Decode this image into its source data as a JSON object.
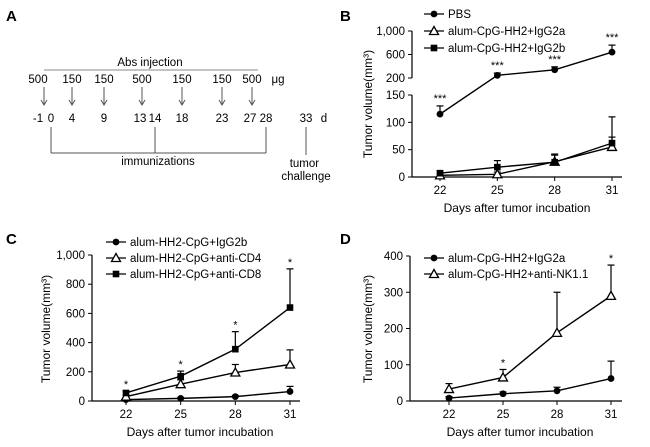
{
  "panel_labels": {
    "A": "A",
    "B": "B",
    "C": "C",
    "D": "D"
  },
  "timeline": {
    "title": "Abs injection",
    "unit": "μg",
    "doses": [
      "500",
      "150",
      "150",
      "500",
      "150",
      "150",
      "500"
    ],
    "days": [
      "-1",
      "0",
      "4",
      "9",
      "13",
      "14",
      "18",
      "23",
      "27",
      "28",
      "33"
    ],
    "day_unit": "d",
    "immunizations_label": "immunizations",
    "tumor_challenge_label": "tumor\nchallenge"
  },
  "chart_data": [
    {
      "panel": "B",
      "type": "line",
      "broken_axis": true,
      "x": [
        22,
        25,
        28,
        31
      ],
      "xlabel": "Days after tumor incubation",
      "ylabel": "Tumor volume(mm³)",
      "ylim_lower": [
        0,
        150
      ],
      "ylim_upper": [
        200,
        1000
      ],
      "yticks": [
        "0",
        "50",
        "100",
        "150",
        "200",
        "600",
        "1,000"
      ],
      "series": [
        {
          "name": "PBS",
          "marker": "circle",
          "values": [
            115,
            245,
            340,
            640
          ],
          "errors": [
            15,
            40,
            50,
            120
          ]
        },
        {
          "name": "alum-CpG-HH2+IgG2a",
          "marker": "triangle",
          "values": [
            3,
            5,
            28,
            55
          ],
          "errors": [
            3,
            4,
            12,
            18
          ]
        },
        {
          "name": "alum-CpG-HH2+IgG2b",
          "marker": "square",
          "values": [
            7,
            18,
            27,
            62
          ],
          "errors": [
            4,
            12,
            15,
            48
          ]
        }
      ],
      "annotations": [
        {
          "x": 22,
          "text": "***"
        },
        {
          "x": 25,
          "text": "***"
        },
        {
          "x": 28,
          "text": "***"
        },
        {
          "x": 31,
          "text": "***"
        }
      ]
    },
    {
      "panel": "C",
      "type": "line",
      "x": [
        22,
        25,
        28,
        31
      ],
      "xlabel": "Days after tumor incubation",
      "ylabel": "Tumor volume(mm³)",
      "ylim": [
        0,
        1000
      ],
      "yticks": [
        "0",
        "200",
        "400",
        "600",
        "800",
        "1,000"
      ],
      "series": [
        {
          "name": "alum-HH2-CpG+IgG2b",
          "marker": "circle",
          "values": [
            10,
            18,
            30,
            65
          ],
          "errors": [
            5,
            6,
            8,
            35
          ]
        },
        {
          "name": "alum-HH2-CpG+anti-CD4",
          "marker": "triangle",
          "values": [
            30,
            115,
            195,
            250
          ],
          "errors": [
            10,
            30,
            55,
            100
          ]
        },
        {
          "name": "alum-HH2-CpG+anti-CD8",
          "marker": "square",
          "values": [
            55,
            170,
            355,
            640
          ],
          "errors": [
            15,
            35,
            120,
            265
          ]
        }
      ],
      "annotations": [
        {
          "x": 22,
          "text": "*"
        },
        {
          "x": 25,
          "text": "*"
        },
        {
          "x": 28,
          "text": "*"
        },
        {
          "x": 31,
          "text": "*"
        }
      ]
    },
    {
      "panel": "D",
      "type": "line",
      "x": [
        22,
        25,
        28,
        31
      ],
      "xlabel": "Days after tumor incubation",
      "ylabel": "Tumor volume(mm³)",
      "ylim": [
        0,
        400
      ],
      "yticks": [
        "0",
        "100",
        "200",
        "300",
        "400"
      ],
      "series": [
        {
          "name": "alum-CpG-HH2+IgG2a",
          "marker": "circle",
          "values": [
            8,
            20,
            28,
            62
          ],
          "errors": [
            4,
            5,
            10,
            48
          ]
        },
        {
          "name": "alum-CpG-HH2+anti-NK1.1",
          "marker": "triangle",
          "values": [
            33,
            65,
            188,
            290
          ],
          "errors": [
            15,
            22,
            112,
            85
          ]
        }
      ],
      "annotations": [
        {
          "x": 25,
          "text": "*"
        },
        {
          "x": 31,
          "text": "*"
        }
      ]
    }
  ]
}
